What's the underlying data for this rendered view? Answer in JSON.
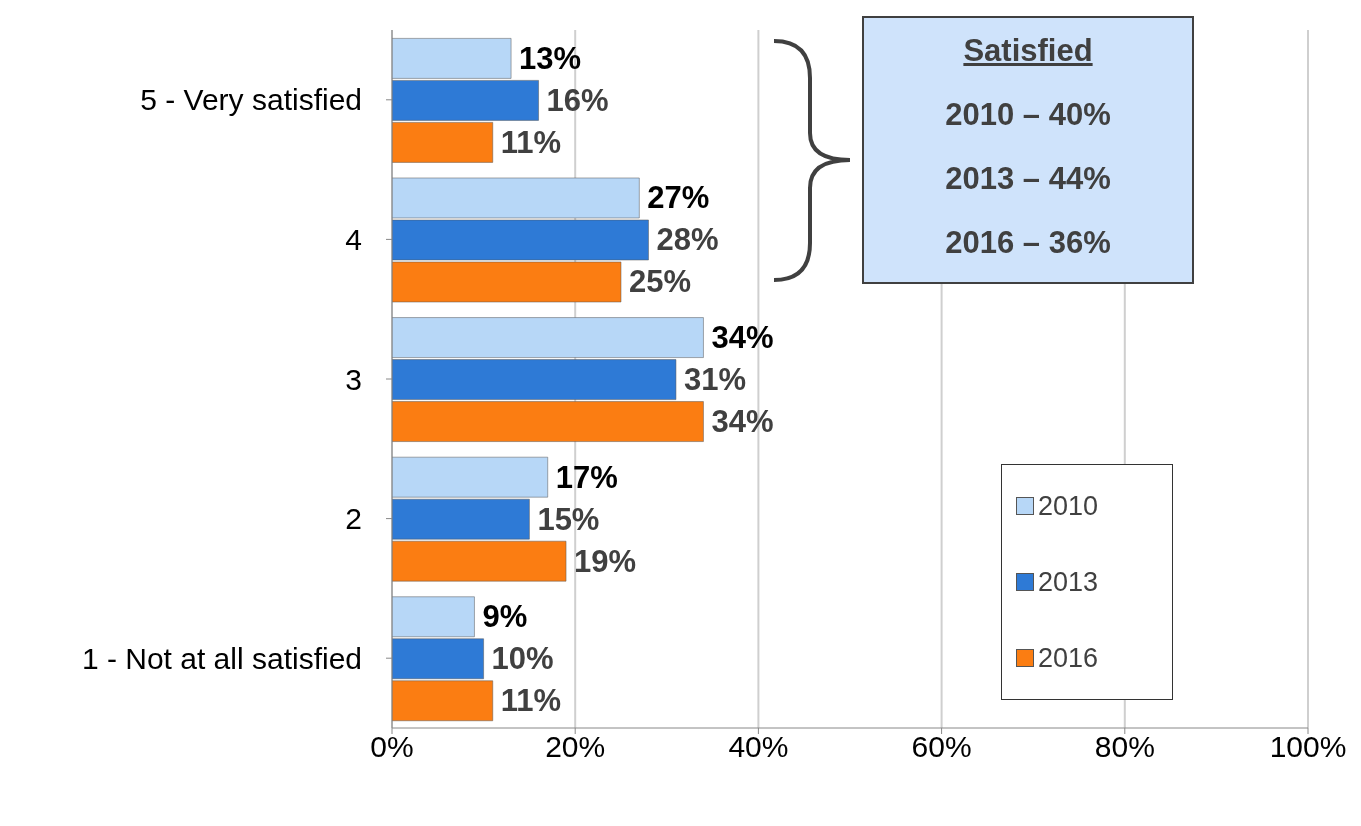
{
  "chart_data": {
    "type": "bar",
    "orientation": "horizontal",
    "categories": [
      "5 - Very satisfied",
      "4",
      "3",
      "2",
      "1 - Not at all satisfied"
    ],
    "series": [
      {
        "name": "2010",
        "color": "#b7d7f7",
        "values": [
          13,
          27,
          34,
          17,
          9
        ],
        "value_labels": [
          "13%",
          "27%",
          "34%",
          "17%",
          "9%"
        ]
      },
      {
        "name": "2013",
        "color": "#2e7ad6",
        "values": [
          16,
          28,
          31,
          15,
          10
        ],
        "value_labels": [
          "16%",
          "28%",
          "31%",
          "15%",
          "10%"
        ]
      },
      {
        "name": "2016",
        "color": "#fb7d12",
        "values": [
          11,
          25,
          34,
          19,
          11
        ],
        "value_labels": [
          "11%",
          "25%",
          "34%",
          "19%",
          "11%"
        ]
      }
    ],
    "xlim": [
      0,
      100
    ],
    "xticks": [
      {
        "value": 0,
        "label": "0%"
      },
      {
        "value": 20,
        "label": "20%"
      },
      {
        "value": 40,
        "label": "40%"
      },
      {
        "value": 60,
        "label": "60%"
      },
      {
        "value": 80,
        "label": "80%"
      },
      {
        "value": 100,
        "label": "100%"
      }
    ],
    "grid": "x",
    "legend": "bottom right",
    "annotations": [
      "Satisfied",
      "2010 – 40%",
      "2013 – 44%",
      "2016 – 36%"
    ]
  }
}
